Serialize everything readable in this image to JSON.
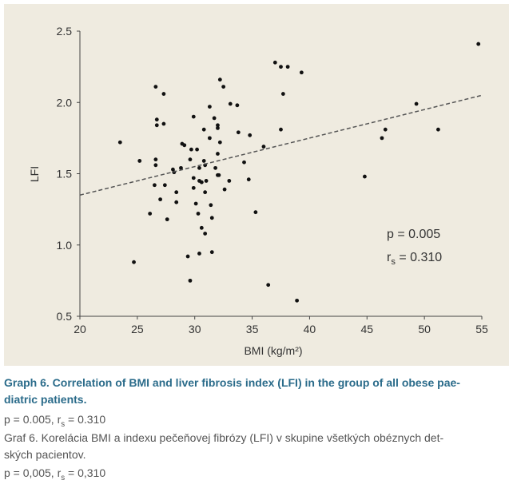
{
  "chart_data": {
    "type": "scatter",
    "x_label": "BMI (kg/m²)",
    "y_label": "LFI",
    "xlim": [
      20,
      55
    ],
    "ylim": [
      0.5,
      2.5
    ],
    "xticks": [
      20,
      25,
      30,
      35,
      40,
      45,
      50,
      55
    ],
    "yticks": [
      0.5,
      {
        "value": 1,
        "label": "1.0"
      },
      1.5,
      {
        "value": 2,
        "label": "2.0"
      },
      2.5
    ],
    "color": "#111111",
    "x": [
      23.5,
      25.2,
      24.7,
      26.1,
      26.6,
      26.7,
      26.7,
      26.6,
      26.6,
      26.5,
      27.0,
      27.3,
      27.3,
      27.4,
      27.6,
      28.1,
      28.2,
      28.4,
      28.4,
      28.8,
      28.9,
      29.1,
      29.4,
      29.6,
      29.6,
      29.7,
      29.9,
      29.9,
      30.2,
      29.9,
      30.1,
      30.3,
      30.4,
      30.4,
      30.4,
      30.6,
      30.6,
      30.8,
      30.8,
      30.9,
      30.9,
      30.9,
      31.0,
      31.3,
      31.3,
      31.4,
      31.5,
      31.5,
      31.7,
      31.8,
      32.0,
      32.0,
      32.0,
      32.0,
      32.1,
      32.2,
      32.2,
      32.5,
      32.6,
      33.0,
      33.1,
      33.7,
      33.8,
      34.3,
      34.7,
      34.8,
      35.3,
      36.0,
      36.4,
      37.0,
      37.5,
      37.5,
      37.7,
      38.1,
      38.9,
      39.3,
      44.8,
      46.3,
      46.6,
      49.3,
      51.2,
      54.7
    ],
    "values": [
      1.72,
      1.59,
      0.88,
      1.22,
      2.11,
      1.88,
      1.84,
      1.6,
      1.56,
      1.42,
      1.32,
      2.06,
      1.85,
      1.42,
      1.18,
      1.53,
      1.51,
      1.37,
      1.3,
      1.54,
      1.71,
      1.7,
      0.92,
      1.6,
      0.75,
      1.67,
      1.47,
      1.9,
      1.67,
      1.4,
      1.29,
      1.22,
      1.54,
      1.45,
      0.94,
      1.12,
      1.44,
      1.81,
      1.59,
      1.56,
      1.37,
      1.08,
      1.45,
      1.97,
      1.75,
      1.28,
      1.19,
      0.95,
      1.89,
      1.54,
      1.49,
      1.84,
      1.82,
      1.64,
      1.49,
      1.72,
      2.16,
      2.11,
      1.39,
      1.45,
      1.99,
      1.98,
      1.79,
      1.58,
      1.46,
      1.77,
      1.23,
      1.69,
      0.72,
      2.28,
      2.25,
      1.81,
      2.06,
      2.25,
      0.61,
      2.21,
      1.48,
      1.75,
      1.81,
      1.99,
      1.81,
      2.41
    ],
    "trend_line": {
      "x": [
        20,
        55
      ],
      "values": [
        1.35,
        2.05
      ],
      "color": "#555555"
    },
    "annotations": [
      {
        "text": "p = 0.005"
      },
      {
        "base": "r",
        "sub": "s",
        "rest": " = 0.310"
      }
    ]
  },
  "caption": {
    "title_lines": [
      "Graph 6. Correlation of BMI and liver fibrosis index (LFI) in the group of all obese pae-",
      "diatric patients."
    ],
    "stats_en": {
      "p": "p = 0.005, ",
      "base": "r",
      "sub": "s",
      "rest": " = 0.310"
    },
    "sk_lines": [
      "Graf 6. Korelácia BMI a indexu pečeňovej fibrózy (LFI) v skupine všetkých obéznych det-",
      "ských pacientov."
    ],
    "stats_sk": {
      "p": "p = 0,005, ",
      "base": "r",
      "sub": "s",
      "rest": " = 0,310"
    }
  }
}
